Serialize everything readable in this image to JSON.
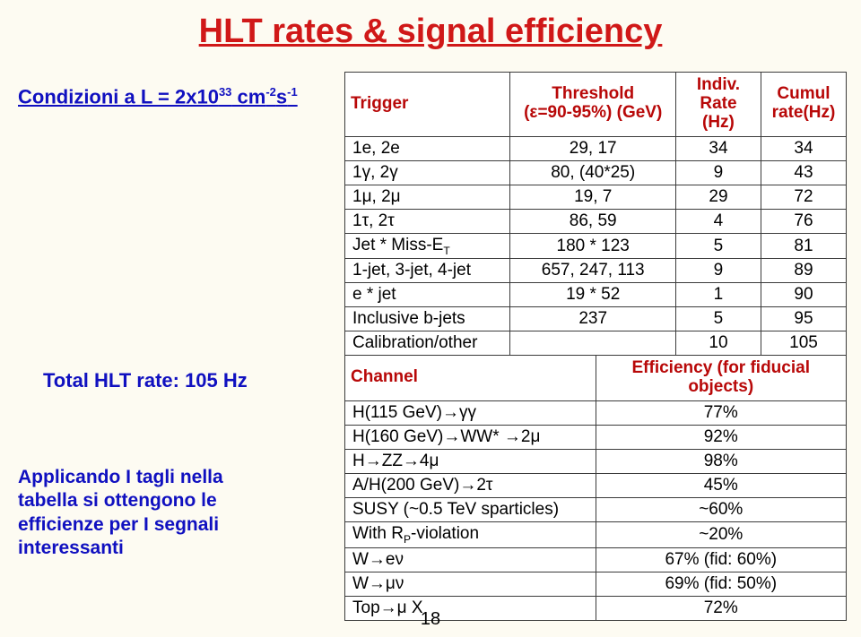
{
  "title": "HLT rates & signal efficiency",
  "cond_html": "Condizioni a L = 2x10<sup>33</sup> cm<sup>-2</sup>s<sup>-1</sup>",
  "left_mid": "Total HLT rate: 105 Hz",
  "left_bottom_lines": [
    "Applicando I tagli nella",
    "tabella  si ottengono le",
    "efficienze per I segnali",
    "interessanti"
  ],
  "table1": {
    "headers": [
      "Trigger",
      "Threshold<br>(ε=90-95%) (GeV)",
      "Indiv.<br>Rate (Hz)",
      "Cumul<br>rate(Hz)"
    ],
    "rows": [
      [
        "1e, 2e",
        "29, 17",
        "34",
        "34"
      ],
      [
        "1γ, 2γ",
        "80, (40*25)",
        "9",
        "43"
      ],
      [
        "1μ, 2μ",
        "19, 7",
        "29",
        "72"
      ],
      [
        "1τ, 2τ",
        "86, 59",
        "4",
        "76"
      ],
      [
        "Jet * Miss-E<sub>T</sub>",
        "180 * 123",
        "5",
        "81"
      ],
      [
        "1-jet, 3-jet, 4-jet",
        "657, 247, 113",
        "9",
        "89"
      ],
      [
        "e * jet",
        "19 * 52",
        "1",
        "90"
      ],
      [
        "Inclusive b-jets",
        "237",
        "5",
        "95"
      ],
      [
        "Calibration/other",
        "",
        "10",
        "105"
      ]
    ],
    "col_widths": [
      "33%",
      "33%",
      "17%",
      "17%"
    ]
  },
  "table2": {
    "headers": [
      "Channel",
      "Efficiency (for fiducial objects)"
    ],
    "rows": [
      [
        "H(115 GeV)→γγ",
        "77%"
      ],
      [
        "H(160 GeV)→WW* →2μ",
        "92%"
      ],
      [
        "H→ZZ→4μ",
        "98%"
      ],
      [
        "A/H(200 GeV)→2τ",
        "45%"
      ],
      [
        "SUSY (~0.5 TeV sparticles)",
        "~60%"
      ],
      [
        "With R<sub>P</sub>-violation",
        "~20%"
      ],
      [
        "W→eν",
        "67% (fid: 60%)"
      ],
      [
        "W→μν",
        "69% (fid: 50%)"
      ],
      [
        "Top→μ X",
        "72%"
      ]
    ],
    "col_widths": [
      "50%",
      "50%"
    ]
  },
  "pagenum": "18"
}
